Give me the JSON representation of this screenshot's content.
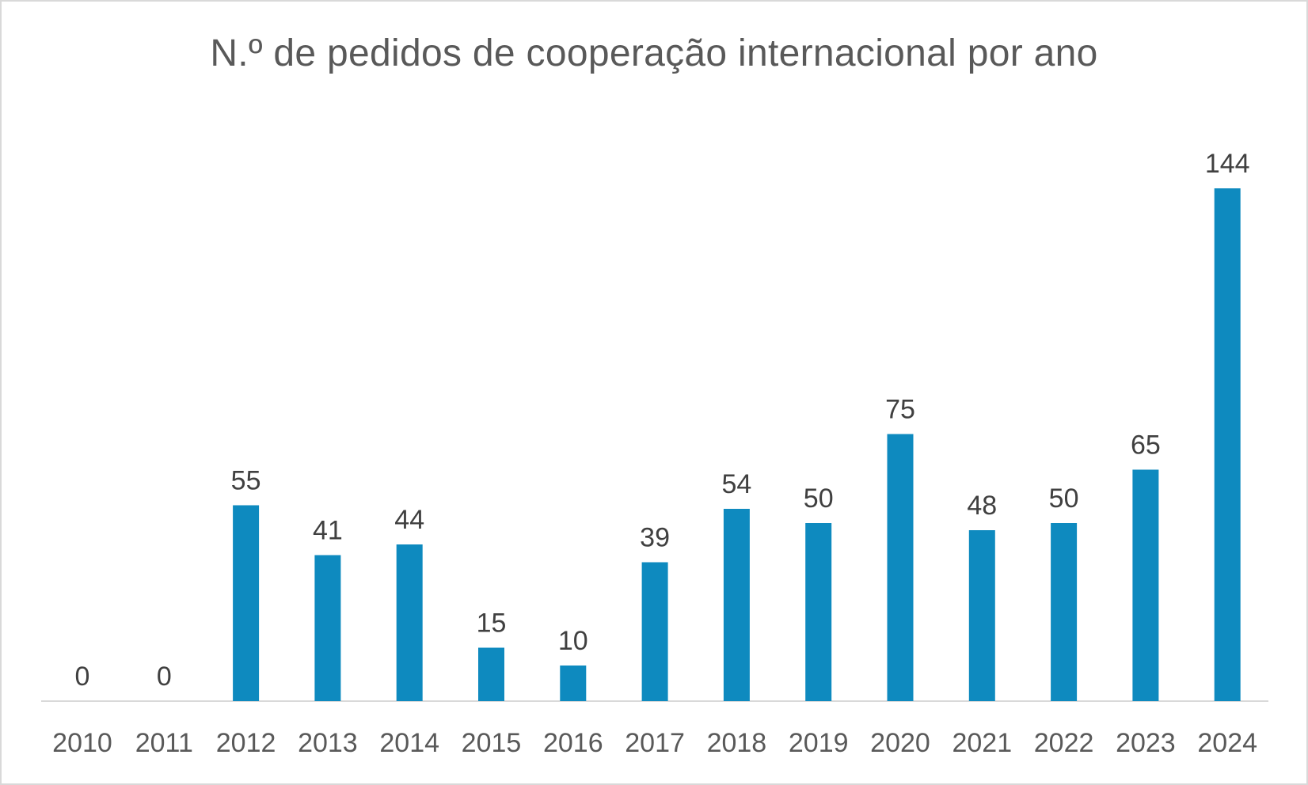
{
  "chart_data": {
    "type": "bar",
    "title": "N.º de pedidos de cooperação internacional por ano",
    "xlabel": "",
    "ylabel": "",
    "categories": [
      "2010",
      "2011",
      "2012",
      "2013",
      "2014",
      "2015",
      "2016",
      "2017",
      "2018",
      "2019",
      "2020",
      "2021",
      "2022",
      "2023",
      "2024"
    ],
    "values": [
      0,
      0,
      55,
      41,
      44,
      15,
      10,
      39,
      54,
      50,
      75,
      48,
      50,
      65,
      144
    ],
    "ylim": [
      0,
      150
    ],
    "grid": false,
    "legend": "none",
    "bar_color": "#0e8abf"
  }
}
